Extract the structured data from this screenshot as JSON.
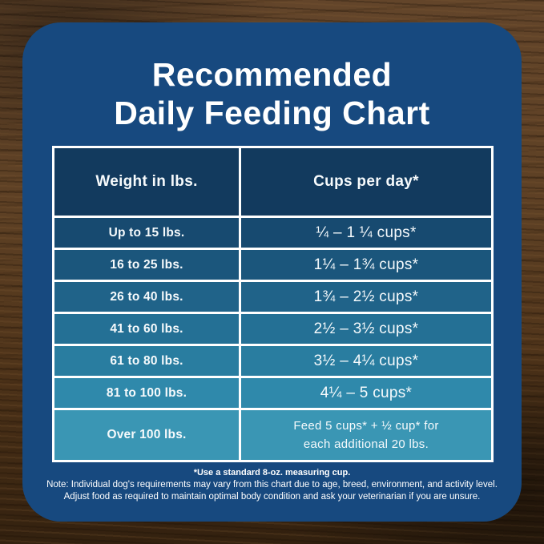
{
  "title": {
    "line1": "Recommended",
    "line2": "Daily Feeding Chart"
  },
  "table": {
    "headers": [
      "Weight in lbs.",
      "Cups per day*"
    ],
    "rows": [
      {
        "weight": "Up to 15 lbs.",
        "cups": "¼ – 1 ¼ cups*"
      },
      {
        "weight": "16 to 25 lbs.",
        "cups": "1¼ – 1¾ cups*"
      },
      {
        "weight": "26 to 40 lbs.",
        "cups": "1¾ – 2½ cups*"
      },
      {
        "weight": "41 to 60 lbs.",
        "cups": "2½ – 3½ cups*"
      },
      {
        "weight": "61 to 80 lbs.",
        "cups": "3½ – 4¼ cups*"
      },
      {
        "weight": "81 to 100 lbs.",
        "cups": "4¼ – 5 cups*"
      },
      {
        "weight": "Over 100 lbs.",
        "cups": "Feed 5 cups* + ½ cup* for\neach additional 20 lbs."
      }
    ]
  },
  "notes": {
    "measuring_cup": "*Use a standard 8-oz. measuring cup.",
    "disclaimer": "Note: Individual dog's requirements may vary from this chart due to age, breed, environment, and activity level.\nAdjust food as required to maintain optimal body condition and ask your veterinarian if you are unsure."
  },
  "colors": {
    "card_background": "#17497F",
    "table_border": "#FFFFFF",
    "header_cell_background": "#123A5E",
    "text": "#FFFFFF",
    "row_backgrounds": [
      "#174A70",
      "#1B567C",
      "#206389",
      "#247095",
      "#297DA0",
      "#2F89AB",
      "#3A96B4"
    ],
    "wood_light": "#63452A",
    "wood_mid": "#4E3319",
    "wood_dark": "#33210F"
  },
  "chart_data": {
    "type": "table",
    "title": "Recommended Daily Feeding Chart",
    "columns": [
      "Weight in lbs.",
      "Cups per day*"
    ],
    "rows": [
      [
        "Up to 15 lbs.",
        "¼ – 1 ¼ cups*"
      ],
      [
        "16 to 25 lbs.",
        "1¼ – 1¾ cups*"
      ],
      [
        "26 to 40 lbs.",
        "1¾ – 2½ cups*"
      ],
      [
        "41 to 60 lbs.",
        "2½ – 3½ cups*"
      ],
      [
        "61 to 80 lbs.",
        "3½ – 4¼ cups*"
      ],
      [
        "81 to 100 lbs.",
        "4¼ – 5 cups*"
      ],
      [
        "Over 100 lbs.",
        "Feed 5 cups* + ½ cup* for each additional 20 lbs."
      ]
    ],
    "notes": [
      "*Use a standard 8-oz. measuring cup.",
      "Note: Individual dog's requirements may vary from this chart due to age, breed, environment, and activity level.",
      "Adjust food as required to maintain optimal body condition and ask your veterinarian if you are unsure."
    ]
  }
}
